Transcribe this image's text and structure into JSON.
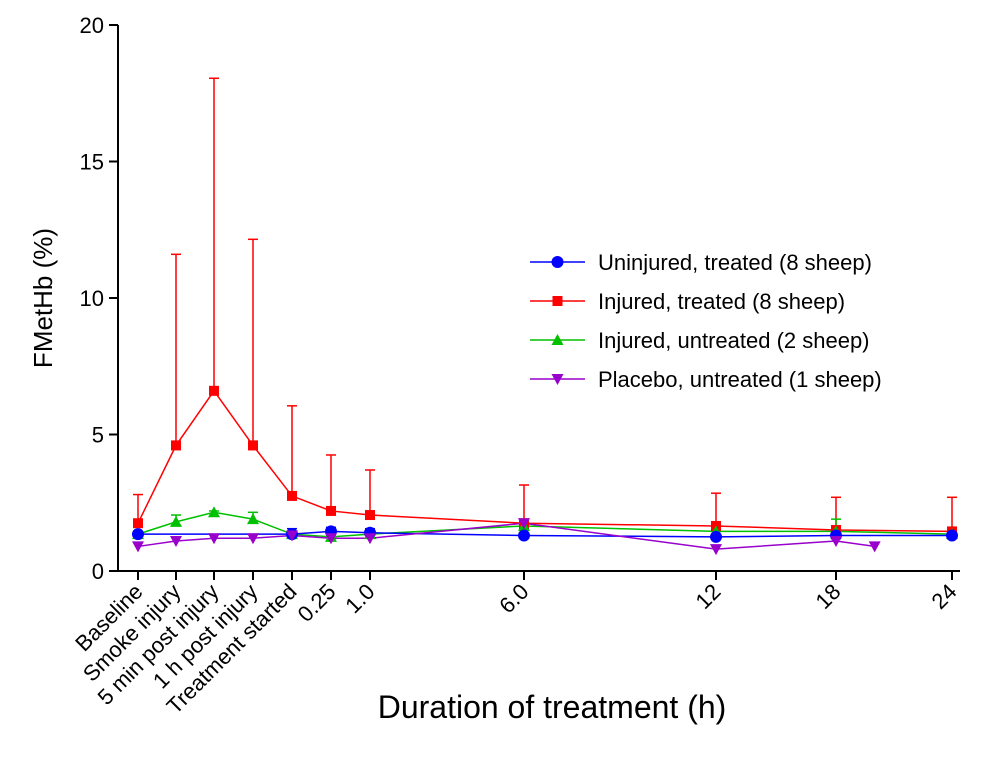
{
  "chart_data": {
    "type": "line",
    "title": "",
    "xlabel": "Duration of treatment (h)",
    "ylabel": "FMetHb (%)",
    "ylim": [
      0,
      20
    ],
    "yticks": [
      0,
      5,
      10,
      15,
      20
    ],
    "grid": false,
    "legend_position": "right",
    "x_ticks": [
      {
        "key": "baseline",
        "label": "Baseline"
      },
      {
        "key": "smoke",
        "label": "Smoke injury"
      },
      {
        "key": "5min",
        "label": "5 min post injury"
      },
      {
        "key": "1h",
        "label": "1 h post injury"
      },
      {
        "key": "treat",
        "label": "Treatment started"
      },
      {
        "key": "0.25",
        "label": "0.25"
      },
      {
        "key": "1.0",
        "label": "1.0"
      },
      {
        "key": "6.0",
        "label": "6.0"
      },
      {
        "key": "12",
        "label": "12"
      },
      {
        "key": "18",
        "label": "18"
      },
      {
        "key": "24",
        "label": "24"
      }
    ],
    "series": [
      {
        "name": "Uninjured, treated (8 sheep)",
        "color": "#0000ff",
        "marker": "circle",
        "x": [
          "baseline",
          "treat",
          "0.25",
          "1.0",
          "6.0",
          "12",
          "18",
          "24"
        ],
        "y": [
          1.35,
          1.35,
          1.45,
          1.4,
          1.3,
          1.25,
          1.3,
          1.3
        ],
        "err": [
          0.1,
          0.2,
          0.15,
          0.15,
          0.25,
          0.2,
          0.2,
          0.2
        ]
      },
      {
        "name": "Injured, treated (8 sheep)",
        "color": "#ff0000",
        "marker": "square",
        "x": [
          "baseline",
          "smoke",
          "5min",
          "1h",
          "treat",
          "0.25",
          "1.0",
          "6.0",
          "12",
          "18",
          "24"
        ],
        "y": [
          1.75,
          4.6,
          6.6,
          4.6,
          2.75,
          2.2,
          2.05,
          1.75,
          1.65,
          1.5,
          1.45
        ],
        "err": [
          1.05,
          7.0,
          11.45,
          7.55,
          3.3,
          2.05,
          1.65,
          1.4,
          1.2,
          1.2,
          1.25
        ]
      },
      {
        "name": "Injured, untreated (2 sheep)",
        "color": "#00c000",
        "marker": "triangle-up",
        "x": [
          "baseline",
          "smoke",
          "5min",
          "1h",
          "treat",
          "0.25",
          "1.0",
          "6.0",
          "12",
          "18",
          "24"
        ],
        "y": [
          1.35,
          1.8,
          2.15,
          1.9,
          1.35,
          1.25,
          1.35,
          1.65,
          1.45,
          1.45,
          1.35
        ],
        "err": [
          0.1,
          0.25,
          0.05,
          0.25,
          0.1,
          0.05,
          0.1,
          0.05,
          0.05,
          0.45,
          0.05
        ]
      },
      {
        "name": "Placebo, untreated (1 sheep)",
        "color": "#9900cc",
        "marker": "triangle-down",
        "x": [
          "baseline",
          "smoke",
          "5min",
          "1h",
          "treat",
          "0.25",
          "1.0",
          "6.0",
          "12",
          "18",
          20
        ],
        "y": [
          0.9,
          1.1,
          1.2,
          1.2,
          1.3,
          1.2,
          1.2,
          1.75,
          0.8,
          1.1,
          0.9
        ]
      }
    ]
  }
}
